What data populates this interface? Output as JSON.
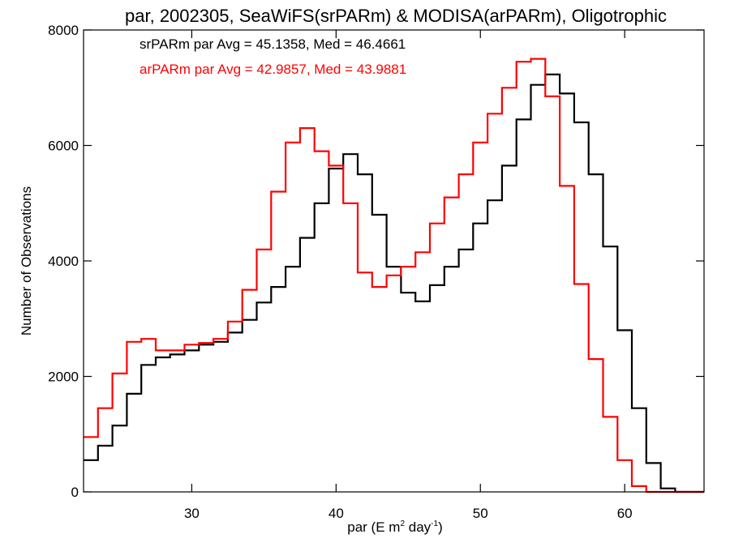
{
  "chart_data": {
    "type": "line",
    "title": "par, 2002305, SeaWiFS(srPARm) & MODISA(arPARm), Oligotrophic",
    "xlabel_main": "par (E m",
    "xlabel_sup1": "2",
    "xlabel_mid": " day",
    "xlabel_sup2": "-1",
    "xlabel_end": ")",
    "ylabel": "Number of Observations",
    "xlim": [
      22.5,
      65.5
    ],
    "ylim": [
      0,
      8000
    ],
    "xticks": [
      30,
      40,
      50,
      60
    ],
    "xtick_labels": [
      "30",
      "40",
      "50",
      "60"
    ],
    "yticks": [
      0,
      2000,
      4000,
      6000,
      8000
    ],
    "ytick_labels": [
      "0",
      "2000",
      "4000",
      "6000",
      "8000"
    ],
    "annotations": [
      {
        "text": "srPARm par Avg = 45.1358, Med = 46.4661",
        "color": "#000000"
      },
      {
        "text": "arPARm par Avg = 42.9857, Med = 43.9881",
        "color": "#ff0000"
      }
    ],
    "series": [
      {
        "color": "#000000",
        "style": "step",
        "x": [
          22.5,
          23.5,
          24.5,
          25.5,
          26.5,
          27.5,
          28.5,
          29.5,
          30.5,
          31.5,
          32.5,
          33.5,
          34.5,
          35.5,
          36.5,
          37.5,
          38.5,
          39.5,
          40.5,
          41.5,
          42.5,
          43.5,
          44.5,
          45.5,
          46.5,
          47.5,
          48.5,
          49.5,
          50.5,
          51.5,
          52.5,
          53.5,
          54.5,
          55.5,
          56.5,
          57.5,
          58.5,
          59.5,
          60.5,
          61.5,
          62.5,
          63.5,
          64.5,
          65.5
        ],
        "values": [
          550,
          800,
          1150,
          1700,
          2200,
          2330,
          2380,
          2450,
          2550,
          2600,
          2760,
          2980,
          3280,
          3550,
          3900,
          4400,
          5000,
          5600,
          5850,
          5500,
          4800,
          3900,
          3450,
          3300,
          3580,
          3900,
          4200,
          4650,
          5050,
          5650,
          6450,
          7050,
          7230,
          6900,
          6400,
          5500,
          4250,
          2800,
          1450,
          500,
          60,
          0,
          0,
          0
        ]
      },
      {
        "color": "#ff0000",
        "style": "step",
        "x": [
          22.5,
          23.5,
          24.5,
          25.5,
          26.5,
          27.5,
          28.5,
          29.5,
          30.5,
          31.5,
          32.5,
          33.5,
          34.5,
          35.5,
          36.5,
          37.5,
          38.5,
          39.5,
          40.5,
          41.5,
          42.5,
          43.5,
          44.5,
          45.5,
          46.5,
          47.5,
          48.5,
          49.5,
          50.5,
          51.5,
          52.5,
          53.5,
          54.5,
          55.5,
          56.5,
          57.5,
          58.5,
          59.5,
          60.5,
          61.5,
          62.5,
          63.5,
          64.5,
          65.5
        ],
        "values": [
          950,
          1450,
          2050,
          2600,
          2650,
          2450,
          2450,
          2550,
          2580,
          2650,
          2950,
          3500,
          4200,
          5200,
          6050,
          6300,
          5900,
          5650,
          5000,
          3800,
          3550,
          3750,
          3900,
          4150,
          4650,
          5100,
          5500,
          6050,
          6550,
          7000,
          7450,
          7500,
          6850,
          5300,
          3600,
          2300,
          1300,
          550,
          100,
          0,
          0,
          0,
          0,
          0
        ]
      }
    ]
  }
}
